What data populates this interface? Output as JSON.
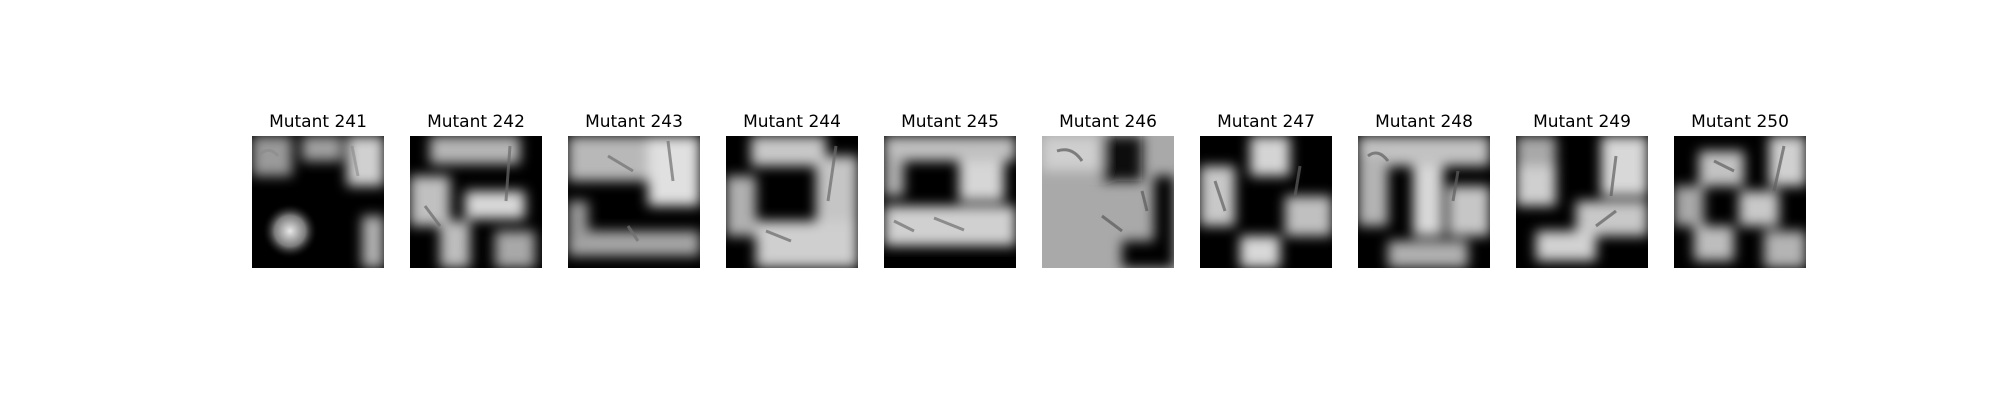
{
  "figure": {
    "panels": [
      {
        "title": "Mutant 241",
        "image": "grayscale-mutant-image"
      },
      {
        "title": "Mutant 242",
        "image": "grayscale-mutant-image"
      },
      {
        "title": "Mutant 243",
        "image": "grayscale-mutant-image"
      },
      {
        "title": "Mutant 244",
        "image": "grayscale-mutant-image"
      },
      {
        "title": "Mutant 245",
        "image": "grayscale-mutant-image"
      },
      {
        "title": "Mutant 246",
        "image": "grayscale-mutant-image"
      },
      {
        "title": "Mutant 247",
        "image": "grayscale-mutant-image"
      },
      {
        "title": "Mutant 248",
        "image": "grayscale-mutant-image"
      },
      {
        "title": "Mutant 249",
        "image": "grayscale-mutant-image"
      },
      {
        "title": "Mutant 250",
        "image": "grayscale-mutant-image"
      }
    ]
  },
  "colors": {
    "background": "#ffffff",
    "title_text": "#000000",
    "dark": "#000000",
    "light": "#dcdcdc"
  }
}
